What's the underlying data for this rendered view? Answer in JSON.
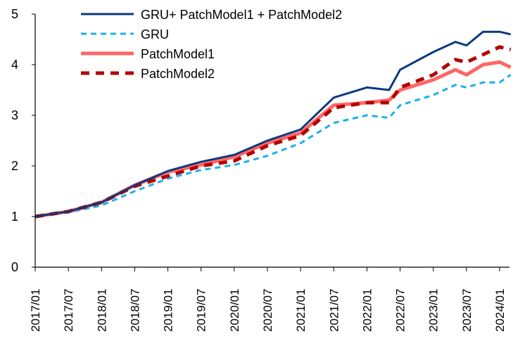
{
  "chart_data": {
    "type": "line",
    "title": "",
    "xlabel": "",
    "ylabel": "",
    "ylim": [
      0,
      5
    ],
    "xlim": [
      "2017/01",
      "2024/03"
    ],
    "yticks": [
      "0",
      "1",
      "2",
      "3",
      "4",
      "5"
    ],
    "xticks": [
      "2017/01",
      "2017/07",
      "2018/01",
      "2018/07",
      "2019/01",
      "2019/07",
      "2020/01",
      "2020/07",
      "2021/01",
      "2021/07",
      "2022/01",
      "2022/07",
      "2023/01",
      "2023/07",
      "2024/01"
    ],
    "legend_position": "top-left",
    "grid": false,
    "x": [
      "2017/01",
      "2017/07",
      "2018/01",
      "2018/07",
      "2019/01",
      "2019/07",
      "2020/01",
      "2020/07",
      "2021/01",
      "2021/07",
      "2022/01",
      "2022/05",
      "2022/07",
      "2023/01",
      "2023/05",
      "2023/07",
      "2023/10",
      "2024/01",
      "2024/03"
    ],
    "series": [
      {
        "name": "GRU+ PatchModel1 + PatchModel2",
        "color": "#0b3a7d",
        "style": "solid",
        "values": [
          1.0,
          1.1,
          1.28,
          1.62,
          1.9,
          2.08,
          2.22,
          2.5,
          2.72,
          3.35,
          3.55,
          3.5,
          3.9,
          4.25,
          4.45,
          4.38,
          4.65,
          4.65,
          4.6
        ]
      },
      {
        "name": "GRU",
        "color": "#1ab0ea",
        "style": "dashed",
        "values": [
          1.0,
          1.08,
          1.22,
          1.5,
          1.75,
          1.92,
          2.02,
          2.2,
          2.45,
          2.85,
          3.0,
          2.95,
          3.2,
          3.4,
          3.6,
          3.55,
          3.65,
          3.65,
          3.8
        ]
      },
      {
        "name": "PatchModel1",
        "color": "#ff6666",
        "style": "thick",
        "values": [
          1.0,
          1.1,
          1.28,
          1.62,
          1.88,
          2.02,
          2.18,
          2.45,
          2.65,
          3.2,
          3.25,
          3.3,
          3.5,
          3.7,
          3.9,
          3.8,
          4.0,
          4.05,
          3.95
        ]
      },
      {
        "name": "PatchModel2",
        "color": "#b30000",
        "style": "thick-dashed",
        "values": [
          1.0,
          1.1,
          1.28,
          1.6,
          1.8,
          2.0,
          2.1,
          2.4,
          2.6,
          3.15,
          3.25,
          3.25,
          3.55,
          3.8,
          4.1,
          4.05,
          4.2,
          4.35,
          4.3
        ]
      }
    ]
  }
}
